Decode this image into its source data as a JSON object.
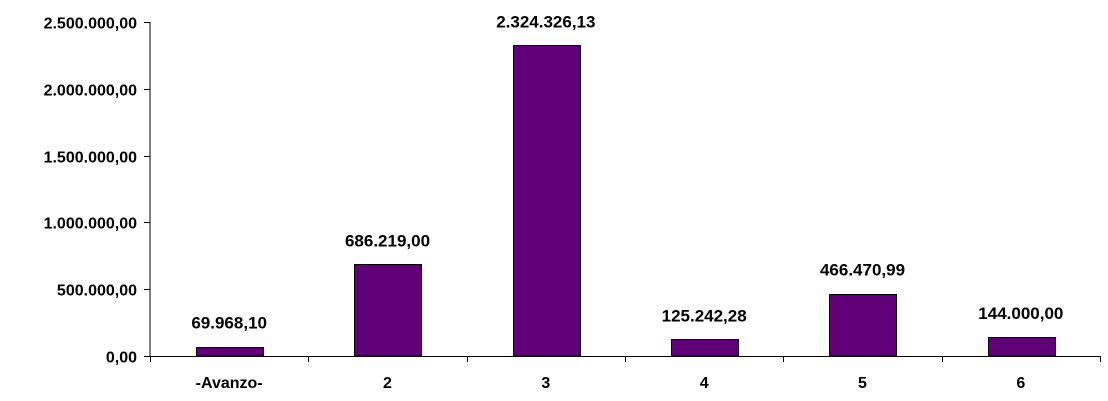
{
  "chart_data": {
    "type": "bar",
    "title": "",
    "xlabel": "",
    "ylabel": "",
    "categories": [
      "-Avanzo-",
      "2",
      "3",
      "4",
      "5",
      "6"
    ],
    "values": [
      69968.1,
      686219.0,
      2324326.13,
      125242.28,
      466470.99,
      144000.0
    ],
    "data_labels": [
      "69.968,10",
      "686.219,00",
      "2.324.326,13",
      "125.242,28",
      "466.470,99",
      "144.000,00"
    ],
    "ylim": [
      0,
      2500000
    ],
    "yticks": [
      0,
      500000,
      1000000,
      1500000,
      2000000,
      2500000
    ],
    "ytick_labels": [
      "0,00",
      "500.000,00",
      "1.000.000,00",
      "1.500.000,00",
      "2.000.000,00",
      "2.500.000,00"
    ],
    "grid": false,
    "legend": "none",
    "bar_color": "#5f0078"
  }
}
